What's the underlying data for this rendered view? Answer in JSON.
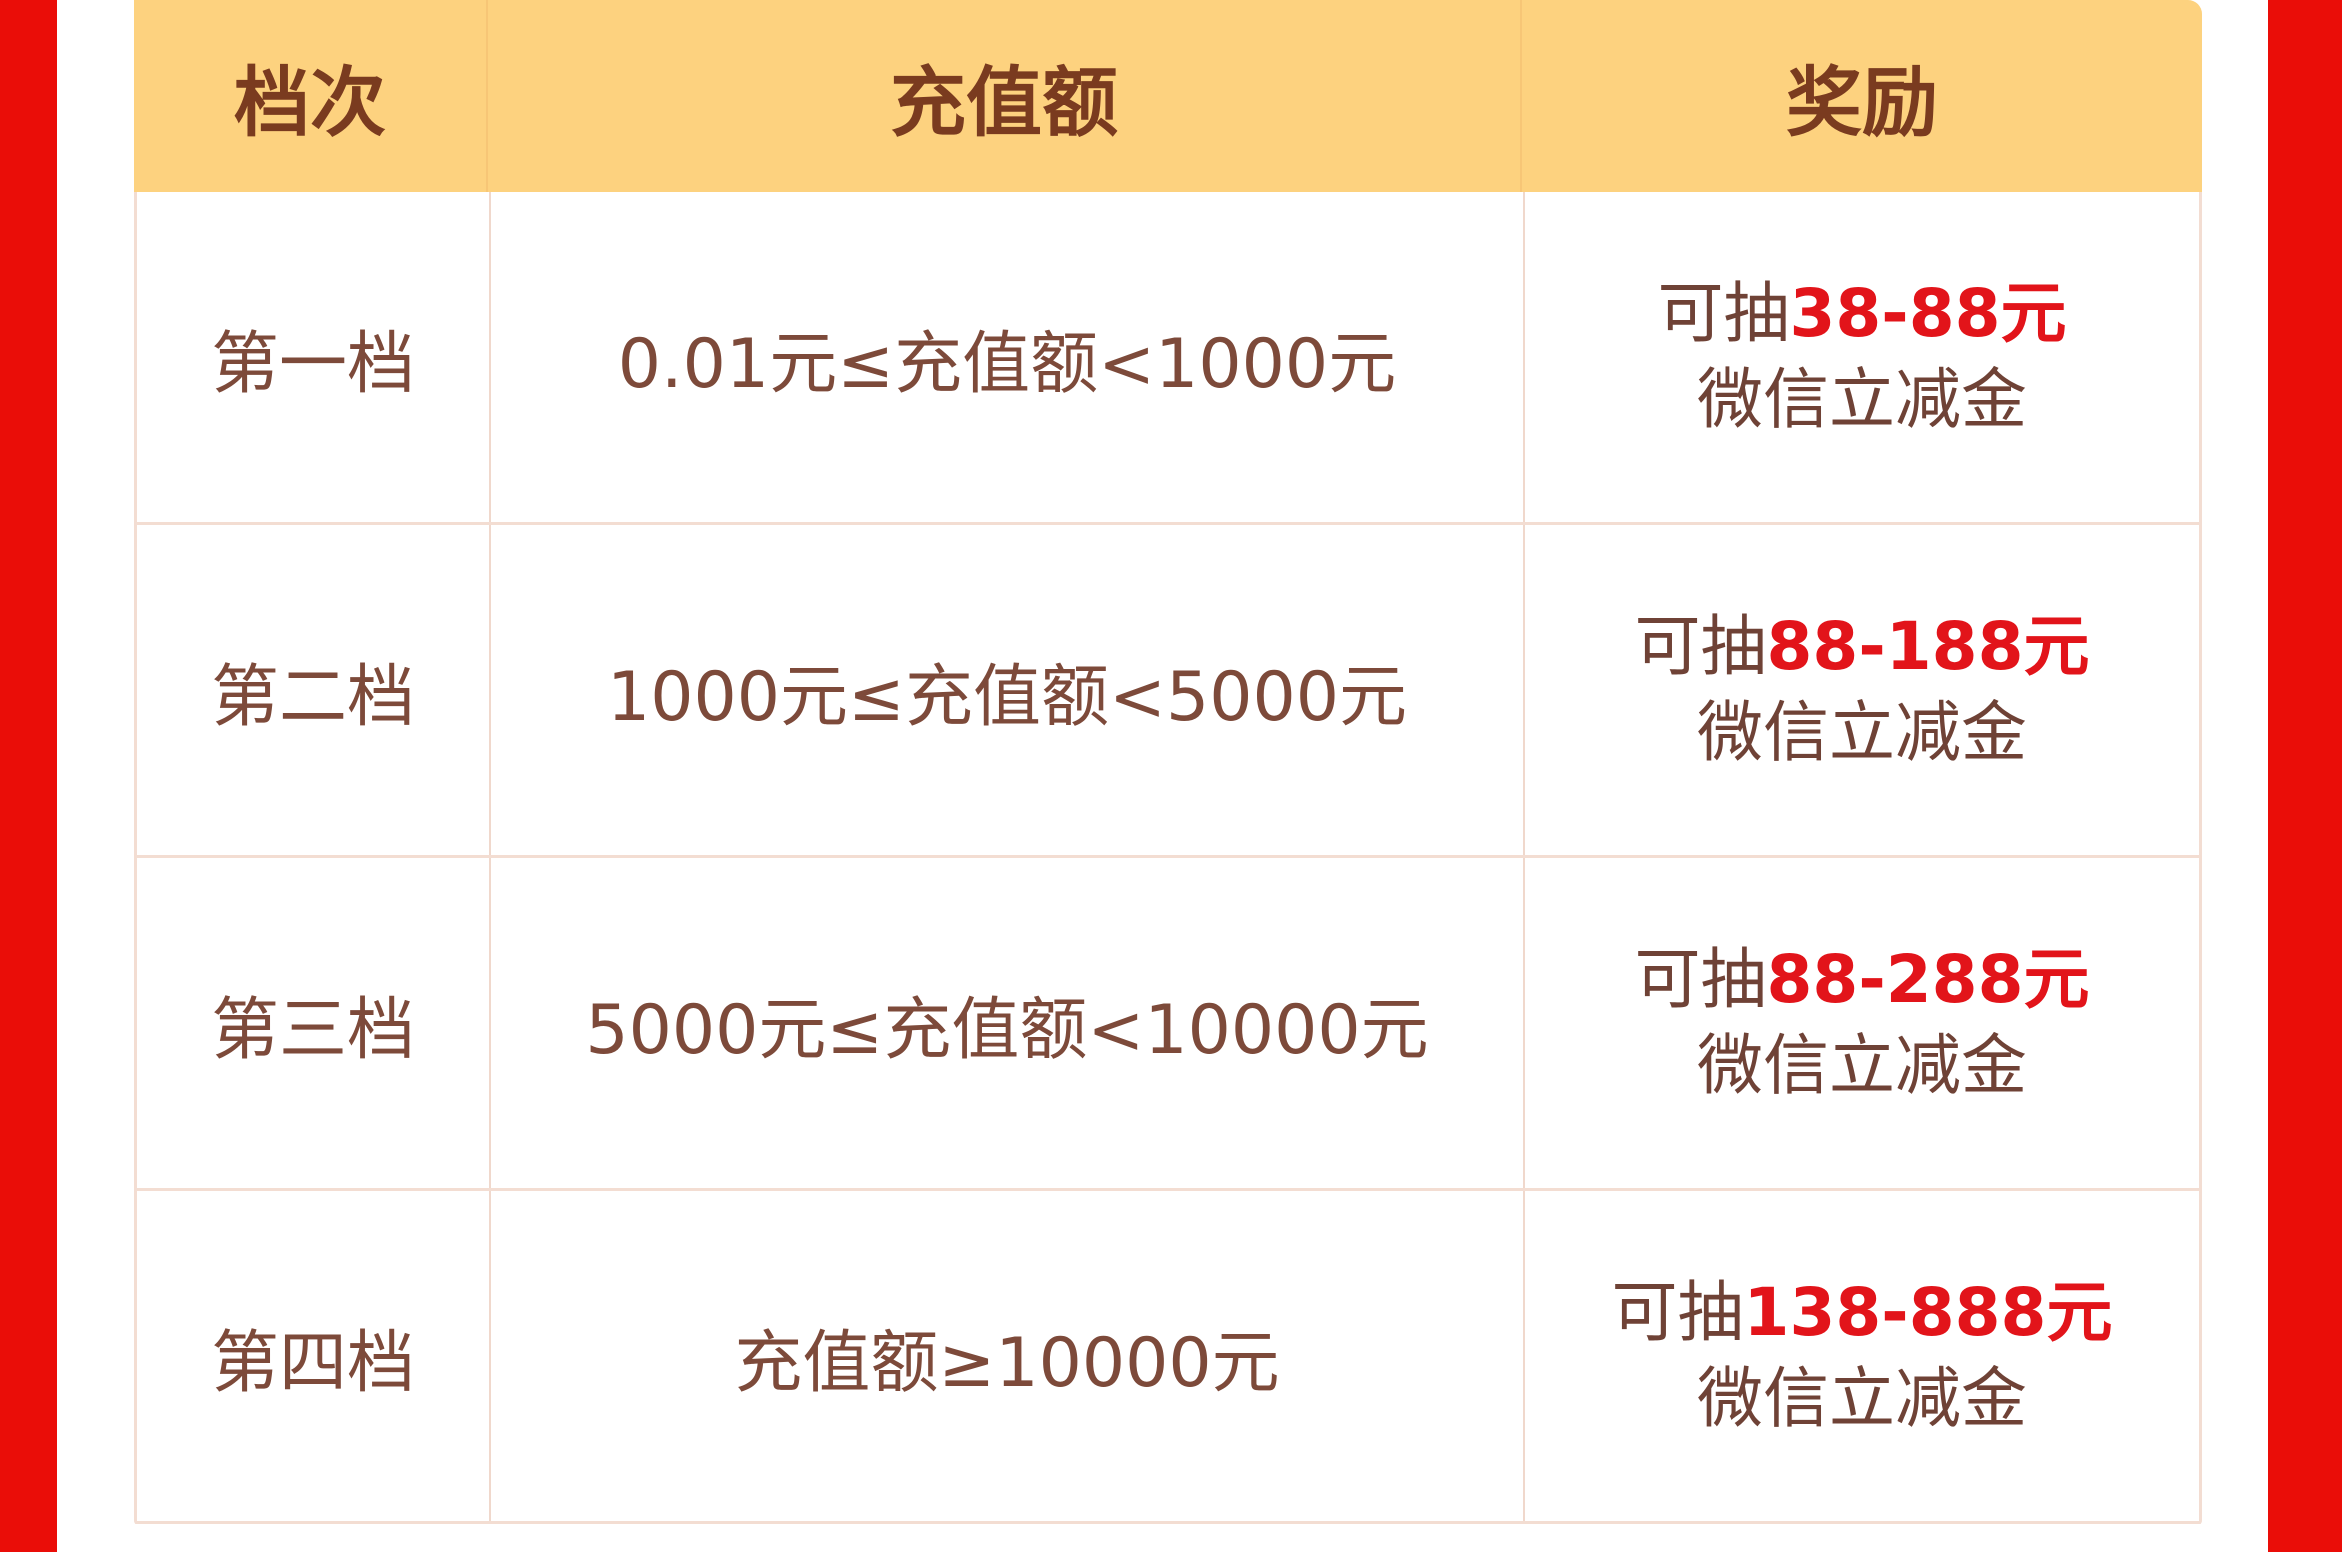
{
  "colors": {
    "frame_red": "#ea0d08",
    "header_bg": "#fdd27f",
    "text_brown": "#7d4a3a",
    "amount_red": "#e2141a"
  },
  "table": {
    "headers": [
      "档次",
      "充值额",
      "奖励"
    ],
    "rows": [
      {
        "tier": "第一档",
        "range": "0.01元≤充值额<1000元",
        "reward_prefix": "可抽",
        "reward_amount": "38-88元",
        "reward_suffix": "微信立减金"
      },
      {
        "tier": "第二档",
        "range": "1000元≤充值额<5000元",
        "reward_prefix": "可抽",
        "reward_amount": "88-188元",
        "reward_suffix": "微信立减金"
      },
      {
        "tier": "第三档",
        "range": "5000元≤充值额<10000元",
        "reward_prefix": "可抽",
        "reward_amount": "88-288元",
        "reward_suffix": "微信立减金"
      },
      {
        "tier": "第四档",
        "range": "充值额≥10000元",
        "reward_prefix": "可抽",
        "reward_amount": "138-888元",
        "reward_suffix": "微信立减金"
      }
    ]
  }
}
